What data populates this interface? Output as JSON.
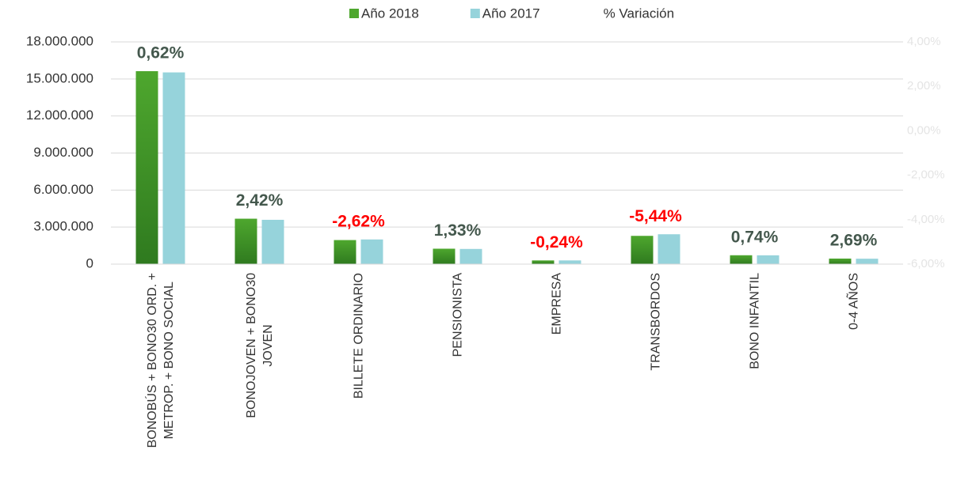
{
  "chart_data": {
    "type": "bar",
    "categories": [
      "BONOBÚS + BONO30 ORD. +\nMETROP. + BONO SOCIAL",
      "BONOJOVEN + BONO30\nJOVEN",
      "BILLETE ORDINARIO",
      "PENSIONISTA",
      "EMPRESA",
      "TRANSBORDOS",
      "BONO INFANTIL",
      "0-4 AÑOS"
    ],
    "series": [
      {
        "name": "Año 2018",
        "color": "#4ea72e",
        "values": [
          15630000,
          3680000,
          1950000,
          1250000,
          300000,
          2290000,
          720000,
          450000
        ]
      },
      {
        "name": "Año 2017",
        "color": "#96d3db",
        "values": [
          15530000,
          3590000,
          2000000,
          1230000,
          300000,
          2420000,
          715000,
          440000
        ]
      },
      {
        "name": "% Variación",
        "axis": "y2",
        "values": [
          0.62,
          2.42,
          -2.62,
          1.33,
          -0.24,
          -5.44,
          0.74,
          2.69
        ],
        "value_labels": [
          "0,62%",
          "2,42%",
          "-2,62%",
          "1,33%",
          "-0,24%",
          "-5,44%",
          "0,74%",
          "2,69%"
        ]
      }
    ],
    "ylim": [
      0,
      18000000
    ],
    "yticks": [
      0,
      {
        "value": 3000000,
        "label": "3.000.000"
      },
      {
        "value": 6000000,
        "label": "6.000.000"
      },
      {
        "value": 9000000,
        "label": "9.000.000"
      },
      {
        "value": 12000000,
        "label": "12.000.000"
      },
      {
        "value": 15000000,
        "label": "15.000.000"
      },
      {
        "value": 18000000,
        "label": "18.000.000"
      }
    ],
    "y2lim": [
      -6,
      4
    ],
    "y2ticks": [
      {
        "value": -6,
        "label": "-6,00%"
      },
      {
        "value": -4,
        "label": "-4,00%"
      },
      {
        "value": -2,
        "label": "-2,00%"
      },
      {
        "value": 0,
        "label": "0,00%"
      },
      {
        "value": 2,
        "label": "2,00%"
      },
      {
        "value": 4,
        "label": "4,00%"
      }
    ],
    "grid": true,
    "legend": "top",
    "label_colors": {
      "positive": "#44584d",
      "negative": "#ff0000"
    }
  }
}
